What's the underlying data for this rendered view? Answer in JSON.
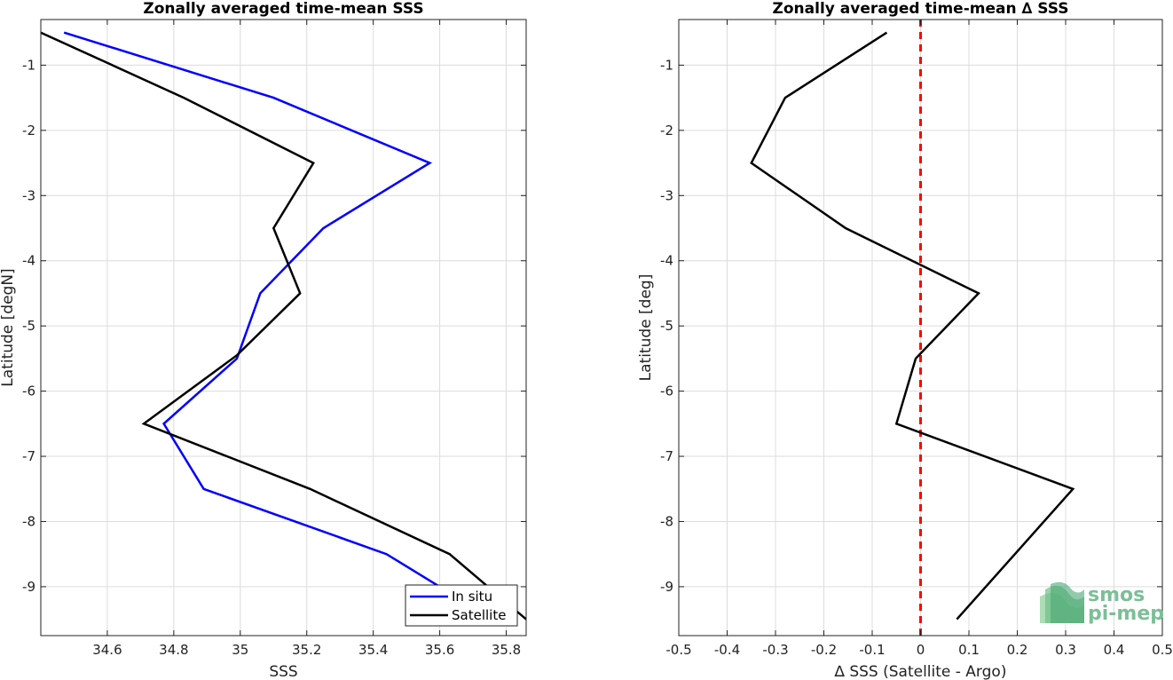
{
  "chart_data": [
    {
      "type": "line",
      "title": "Zonally averaged time-mean SSS",
      "xlabel": "SSS",
      "ylabel": "Latitude [degN]",
      "xlim": [
        34.4,
        35.86
      ],
      "ylim": [
        -9.75,
        -0.3
      ],
      "xticks": [
        34.6,
        34.8,
        35,
        35.2,
        35.4,
        35.6,
        35.8
      ],
      "xtick_labels": [
        "34.6",
        "34.8",
        "35",
        "35.2",
        "35.4",
        "35.6",
        "35.8"
      ],
      "yticks": [
        -1,
        -2,
        -3,
        -4,
        -5,
        -6,
        -7,
        -8,
        -9
      ],
      "ytick_labels": [
        "-1",
        "-2",
        "-3",
        "-4",
        "-5",
        "-6",
        "-7",
        "-8",
        "-9"
      ],
      "grid": true,
      "legend": "bottom-right",
      "series": [
        {
          "name": "In situ",
          "color": "#0000ff",
          "points": [
            [
              34.47,
              -0.5
            ],
            [
              35.1,
              -1.5
            ],
            [
              35.57,
              -2.5
            ],
            [
              35.25,
              -3.5
            ],
            [
              35.06,
              -4.5
            ],
            [
              34.99,
              -5.5
            ],
            [
              34.77,
              -6.5
            ],
            [
              34.89,
              -7.5
            ],
            [
              35.44,
              -8.5
            ],
            [
              35.6,
              -9.0
            ]
          ]
        },
        {
          "name": "Satellite",
          "color": "#000000",
          "points": [
            [
              34.4,
              -0.5
            ],
            [
              34.83,
              -1.5
            ],
            [
              35.22,
              -2.5
            ],
            [
              35.1,
              -3.5
            ],
            [
              35.18,
              -4.5
            ],
            [
              34.99,
              -5.45
            ],
            [
              34.71,
              -6.5
            ],
            [
              35.21,
              -7.5
            ],
            [
              35.63,
              -8.5
            ],
            [
              35.86,
              -9.5
            ]
          ]
        }
      ]
    },
    {
      "type": "line",
      "title": "Zonally averaged time-mean ∆ SSS",
      "xlabel": "∆ SSS (Satellite - Argo)",
      "ylabel": "Latitude [deg]",
      "xlim": [
        -0.5,
        0.5
      ],
      "ylim": [
        -9.75,
        -0.3
      ],
      "xticks": [
        -0.5,
        -0.4,
        -0.3,
        -0.2,
        -0.1,
        0,
        0.1,
        0.2,
        0.3,
        0.4,
        0.5
      ],
      "xtick_labels": [
        "-0.5",
        "-0.4",
        "-0.3",
        "-0.2",
        "-0.1",
        "0",
        "0.1",
        "0.2",
        "0.3",
        "0.4",
        "0.5"
      ],
      "yticks": [
        -1,
        -2,
        -3,
        -4,
        -5,
        -6,
        -7,
        -8,
        -9
      ],
      "ytick_labels": [
        "-1",
        "-2",
        "-3",
        "-4",
        "-5",
        "-6",
        "-7",
        "-8",
        "-9"
      ],
      "grid": true,
      "reference_line": {
        "x": 0,
        "color": "#ff0000",
        "style": "dashed"
      },
      "series": [
        {
          "color": "#000000",
          "points": [
            [
              -0.07,
              -0.5
            ],
            [
              -0.28,
              -1.5
            ],
            [
              -0.35,
              -2.5
            ],
            [
              -0.155,
              -3.5
            ],
            [
              0.12,
              -4.5
            ],
            [
              -0.01,
              -5.5
            ],
            [
              -0.05,
              -6.5
            ],
            [
              0.315,
              -7.5
            ],
            [
              0.075,
              -9.5
            ]
          ]
        }
      ]
    }
  ],
  "logo": {
    "line1": "smos",
    "line2": "pi-mep"
  }
}
